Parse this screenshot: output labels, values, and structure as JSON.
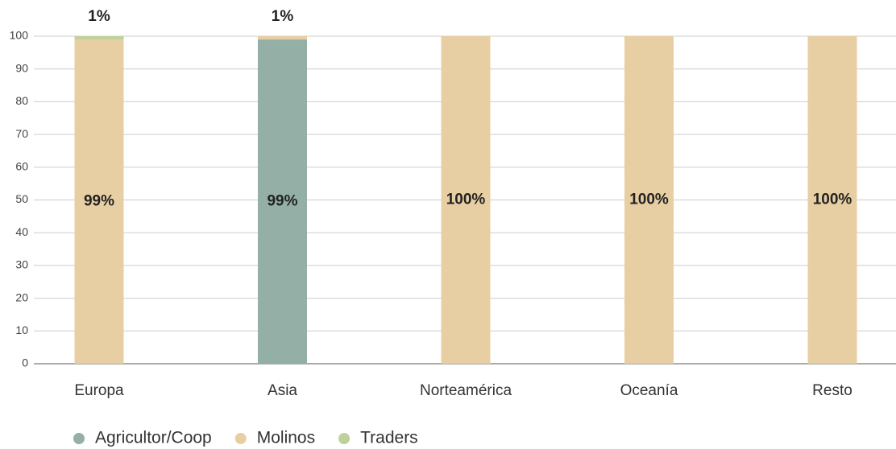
{
  "chart_data": {
    "type": "stacked_bar",
    "categories": [
      "Europa",
      "Asia",
      "Norteamérica",
      "Oceanía",
      "Resto"
    ],
    "series": [
      {
        "name": "Agricultor/Coop",
        "color": "#94afa5",
        "values": [
          0,
          99,
          0,
          0,
          0
        ],
        "value_labels": [
          null,
          "99%",
          null,
          null,
          null
        ]
      },
      {
        "name": "Molinos",
        "color": "#e8cfa3",
        "values": [
          99,
          1,
          100,
          100,
          100
        ],
        "value_labels": [
          "99%",
          "1%",
          "100%",
          "100%",
          "100%"
        ]
      },
      {
        "name": "Traders",
        "color": "#bfd19a",
        "values": [
          1,
          0,
          0,
          0,
          0
        ],
        "value_labels": [
          "1%",
          null,
          null,
          null,
          null
        ]
      }
    ],
    "ylim": [
      0,
      100
    ],
    "yticks": [
      0,
      10,
      20,
      30,
      40,
      50,
      60,
      70,
      80,
      90,
      100
    ],
    "grid": true
  }
}
